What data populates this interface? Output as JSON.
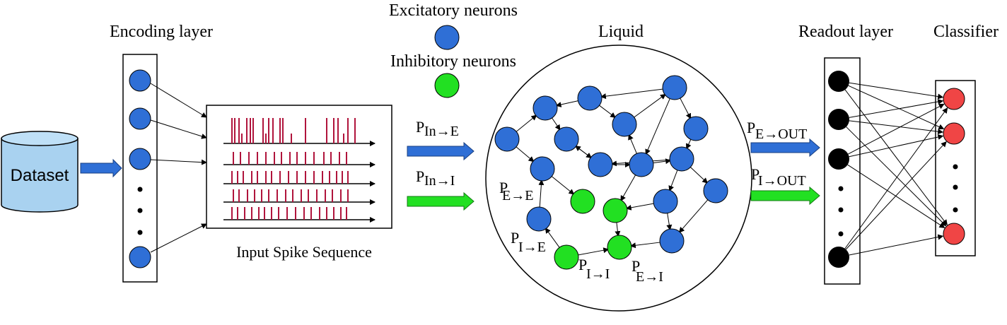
{
  "labels": {
    "encoding_layer": "Encoding layer",
    "excitatory": "Excitatory neurons",
    "inhibitory": "Inhibitory neurons",
    "liquid": "Liquid",
    "readout_layer": "Readout layer",
    "classifier": "Classifier",
    "dataset": "Dataset",
    "input_spike_sequence": "Input Spike Sequence"
  },
  "probabilities": {
    "p_in_e": {
      "p": "P",
      "sub": "In→E"
    },
    "p_in_i": {
      "p": "P",
      "sub": "In→I"
    },
    "p_e_out": {
      "p": "P",
      "sub": "E→OUT"
    },
    "p_i_out": {
      "p": "P",
      "sub": "I→OUT"
    },
    "p_e_e": {
      "p": "P",
      "sub": "E→E"
    },
    "p_i_e": {
      "p": "P",
      "sub": "I→E"
    },
    "p_i_i": {
      "p": "P",
      "sub": "I→I"
    },
    "p_e_i": {
      "p": "P",
      "sub": "E→I"
    }
  },
  "colors": {
    "excitatory": "#2f6fd6",
    "inhibitory": "#22e022",
    "readout": "#000000",
    "classifier": "#f04545",
    "spike": "#b0143c",
    "dataset": "#a9d2f0",
    "arrow_blue": "#2f6fd6",
    "arrow_green": "#22e022"
  }
}
